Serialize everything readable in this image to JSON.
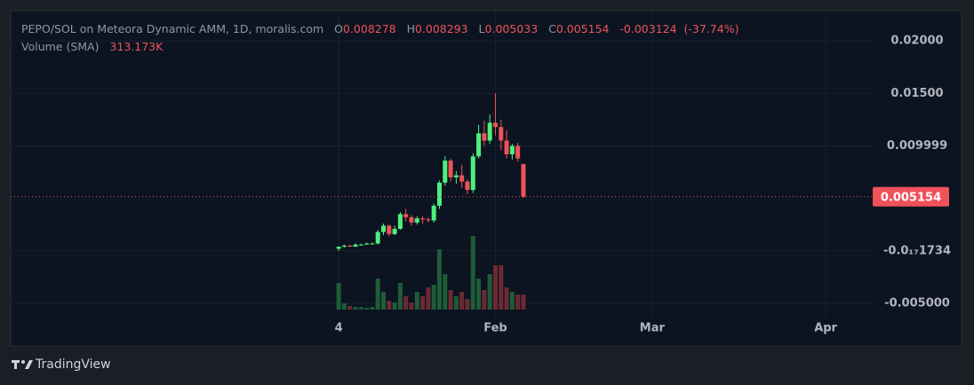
{
  "chart_data": {
    "type": "candlestick",
    "title": "PEPO/SOL on Meteora Dynamic AMM, 1D, moralis.com",
    "ohlc_labels": [
      "O",
      "H",
      "L",
      "C"
    ],
    "change": -0.003124,
    "change_percent": -37.74,
    "change_percent_label": "(-37.74%)",
    "volume_title": "Volume (SMA)",
    "x": [
      0,
      1,
      2,
      3,
      4,
      5,
      6,
      7,
      8,
      9,
      10,
      11,
      12,
      13,
      14,
      15,
      16,
      17,
      18,
      19,
      20,
      21,
      22,
      23,
      24,
      25,
      26,
      27,
      28,
      29,
      30,
      31,
      32,
      33
    ],
    "open": [
      0.0002,
      0.0004,
      0.0005,
      0.0004,
      0.0006,
      0.0006,
      0.0007,
      0.0007,
      0.0018,
      0.0024,
      0.0016,
      0.0021,
      0.0035,
      0.0032,
      0.0027,
      0.0031,
      0.003,
      0.0029,
      0.0043,
      0.0065,
      0.0086,
      0.007,
      0.0072,
      0.0066,
      0.0058,
      0.009,
      0.0112,
      0.0105,
      0.0122,
      0.0118,
      0.0105,
      0.0092,
      0.01,
      0.008278
    ],
    "high": [
      0.0004,
      0.0006,
      0.0006,
      0.0007,
      0.0007,
      0.0008,
      0.0008,
      0.002,
      0.0026,
      0.0025,
      0.0024,
      0.0037,
      0.004,
      0.0034,
      0.0033,
      0.0033,
      0.0032,
      0.0045,
      0.0067,
      0.009,
      0.0088,
      0.0076,
      0.0082,
      0.0068,
      0.0093,
      0.012,
      0.0124,
      0.013,
      0.015,
      0.0125,
      0.0115,
      0.0102,
      0.0103,
      0.008293
    ],
    "low": [
      0.0,
      0.0003,
      0.0004,
      0.0004,
      0.0005,
      0.0006,
      0.0006,
      0.0006,
      0.0015,
      0.0014,
      0.0015,
      0.002,
      0.0028,
      0.0024,
      0.0025,
      0.0026,
      0.0027,
      0.0027,
      0.004,
      0.0062,
      0.0066,
      0.0064,
      0.006,
      0.0054,
      0.0055,
      0.0088,
      0.01,
      0.0102,
      0.011,
      0.0096,
      0.0088,
      0.0087,
      0.0085,
      0.005033
    ],
    "close": [
      0.0004,
      0.0005,
      0.0004,
      0.0006,
      0.0006,
      0.0007,
      0.0007,
      0.0018,
      0.0024,
      0.0016,
      0.0021,
      0.0035,
      0.0032,
      0.0027,
      0.0031,
      0.003,
      0.0029,
      0.0043,
      0.0065,
      0.0086,
      0.007,
      0.0072,
      0.0066,
      0.0058,
      0.009,
      0.0112,
      0.0105,
      0.0122,
      0.0118,
      0.0105,
      0.0092,
      0.01,
      0.0088,
      0.005154
    ],
    "volume": [
      553000,
      129000,
      74000,
      55000,
      55000,
      37000,
      55000,
      645000,
      368000,
      184000,
      147000,
      553000,
      276000,
      147000,
      368000,
      276000,
      461000,
      516000,
      1253000,
      737000,
      405000,
      276000,
      368000,
      221000,
      1529000,
      645000,
      405000,
      737000,
      921000,
      921000,
      461000,
      368000,
      313173,
      313173
    ],
    "volume_labels": [
      null,
      null,
      null,
      null,
      null,
      null,
      null,
      null,
      null,
      null,
      null,
      null,
      null,
      null,
      null,
      null,
      null,
      null,
      null,
      null,
      null,
      null,
      null,
      null,
      null,
      null,
      null,
      null,
      null,
      null,
      null,
      null,
      null,
      "313.173K"
    ],
    "up_color": "#4ef07c",
    "down_color": "#f0525a",
    "up_volume_color": "#1f5c38",
    "down_volume_color": "#6b2a33",
    "xlim": [
      -58.6,
      95.4
    ],
    "xticks": [
      {
        "value": 0,
        "label": "4"
      },
      {
        "value": 28,
        "label": "Feb"
      },
      {
        "value": 56,
        "label": "Mar"
      },
      {
        "value": 87,
        "label": "Apr"
      }
    ],
    "ylim": [
      -0.0061,
      0.02288
    ],
    "yticks": [
      {
        "value": 0.02,
        "label": "0.02000"
      },
      {
        "value": 0.015,
        "label": "0.01500"
      },
      0.009999,
      {
        "value": -1.734e-18,
        "label": "-0.0₁₇1734"
      },
      {
        "value": -0.005,
        "label": "-0.005000"
      }
    ],
    "grid": true,
    "brand": "TradingView"
  }
}
